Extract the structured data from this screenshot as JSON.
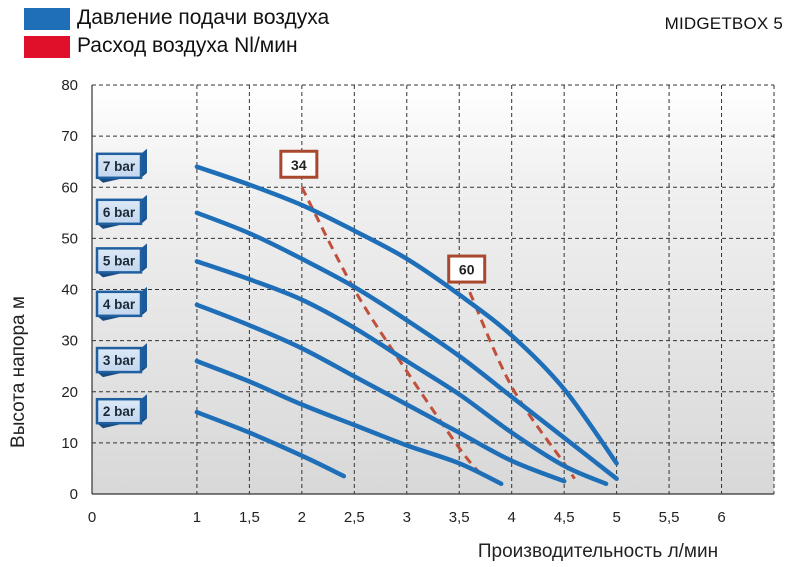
{
  "legend": {
    "items": [
      {
        "label": "Давление подачи воздуха",
        "color": "#1f6fb8"
      },
      {
        "label": "Расход воздуха Nl/мин",
        "color": "#e0102a"
      }
    ]
  },
  "brand": "MIDGETBOX 5",
  "chart_data": {
    "type": "line",
    "xlabel": "Производительность л/мин",
    "ylabel": "Высота напора  м",
    "xlim": [
      0,
      6.5
    ],
    "ylim": [
      0,
      80
    ],
    "x_ticks": [
      0,
      1,
      1.5,
      2,
      2.5,
      3,
      3.5,
      4,
      4.5,
      5,
      5.5,
      6
    ],
    "x_tick_labels": [
      "0",
      "1",
      "1,5",
      "2",
      "2,5",
      "3",
      "3,5",
      "4",
      "4,5",
      "5",
      "5,5",
      "6"
    ],
    "y_ticks": [
      0,
      10,
      20,
      30,
      40,
      50,
      60,
      70,
      80
    ],
    "y_tick_labels": [
      "0",
      "10",
      "20",
      "30",
      "40",
      "50",
      "60",
      "70",
      "80"
    ],
    "grid": true,
    "series": [
      {
        "name": "7 bar",
        "color": "#1f6fb8",
        "points": [
          [
            1,
            64
          ],
          [
            1.5,
            60.5
          ],
          [
            2,
            56.5
          ],
          [
            2.5,
            51.5
          ],
          [
            3,
            46
          ],
          [
            3.5,
            39
          ],
          [
            4,
            31
          ],
          [
            4.5,
            20.5
          ],
          [
            5,
            6
          ]
        ]
      },
      {
        "name": "6 bar",
        "color": "#1f6fb8",
        "points": [
          [
            1,
            55
          ],
          [
            1.5,
            51
          ],
          [
            2,
            46
          ],
          [
            2.5,
            40.5
          ],
          [
            3,
            34
          ],
          [
            3.5,
            27
          ],
          [
            4,
            19
          ],
          [
            4.5,
            11
          ],
          [
            5,
            3
          ]
        ]
      },
      {
        "name": "5 bar",
        "color": "#1f6fb8",
        "points": [
          [
            1,
            45.5
          ],
          [
            1.5,
            42
          ],
          [
            2,
            38
          ],
          [
            2.5,
            32.5
          ],
          [
            3,
            26
          ],
          [
            3.5,
            19.5
          ],
          [
            4,
            12
          ],
          [
            4.5,
            5.5
          ],
          [
            4.9,
            2
          ]
        ]
      },
      {
        "name": "4 bar",
        "color": "#1f6fb8",
        "points": [
          [
            1,
            37
          ],
          [
            1.5,
            33
          ],
          [
            2,
            28.5
          ],
          [
            2.5,
            23
          ],
          [
            3,
            17.5
          ],
          [
            3.5,
            12
          ],
          [
            4,
            6.5
          ],
          [
            4.5,
            2.5
          ]
        ]
      },
      {
        "name": "3 bar",
        "color": "#1f6fb8",
        "points": [
          [
            1,
            26
          ],
          [
            1.5,
            22
          ],
          [
            2,
            17.5
          ],
          [
            2.5,
            13.5
          ],
          [
            3,
            9.5
          ],
          [
            3.5,
            6
          ],
          [
            3.9,
            2
          ]
        ]
      },
      {
        "name": "2 bar",
        "color": "#1f6fb8",
        "points": [
          [
            1,
            16
          ],
          [
            1.5,
            12
          ],
          [
            2,
            7.5
          ],
          [
            2.4,
            3.5
          ]
        ]
      }
    ],
    "air_consumption": [
      {
        "name": "34",
        "color": "#e0102a",
        "points": [
          [
            2,
            60
          ],
          [
            2.5,
            40
          ],
          [
            3,
            24
          ],
          [
            3.5,
            9
          ],
          [
            3.7,
            4
          ]
        ]
      },
      {
        "name": "60",
        "color": "#e0102a",
        "points": [
          [
            3.6,
            39.5
          ],
          [
            4,
            21
          ],
          [
            4.5,
            6
          ],
          [
            4.6,
            3
          ]
        ]
      }
    ]
  }
}
